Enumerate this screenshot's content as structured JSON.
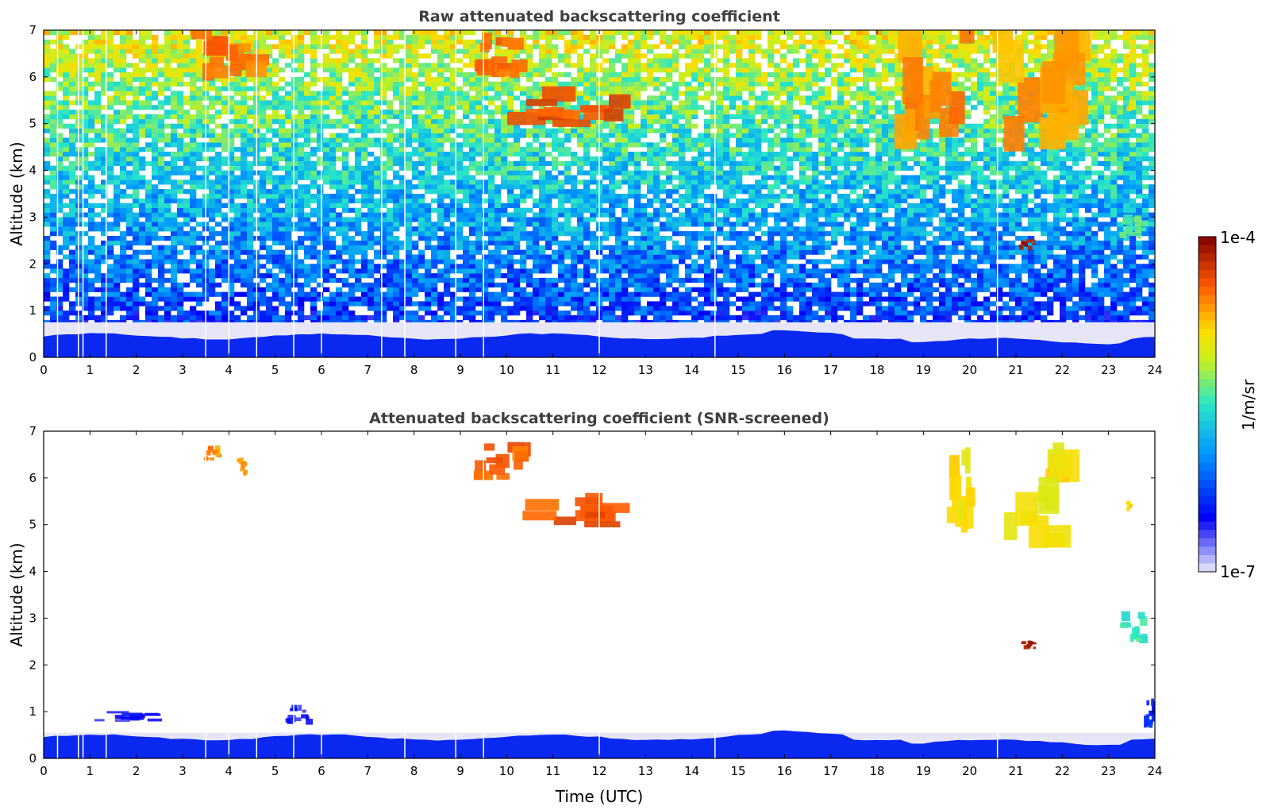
{
  "chart_data": [
    {
      "type": "heatmap",
      "title": "Raw attenuated backscattering coefficient",
      "xlabel": "",
      "ylabel": "Altitude (km)",
      "xlim": [
        0,
        24
      ],
      "ylim": [
        0,
        7
      ],
      "xticks": [
        0,
        1,
        2,
        3,
        4,
        5,
        6,
        7,
        8,
        9,
        10,
        11,
        12,
        13,
        14,
        15,
        16,
        17,
        18,
        19,
        20,
        21,
        22,
        23,
        24
      ],
      "yticks": [
        0,
        1,
        2,
        3,
        4,
        5,
        6,
        7
      ],
      "noise_background": true,
      "boundary_layer": {
        "top_km": 0.45,
        "shade_top_km": 0.75
      },
      "data_gaps_utc": [
        0.3,
        0.75,
        0.85,
        1.35,
        3.5,
        4.0,
        4.6,
        5.4,
        6.0,
        7.3,
        7.8,
        8.9,
        9.5,
        12.0,
        14.5,
        20.6
      ],
      "cloud_features": [
        {
          "t_start": 3.4,
          "t_end": 4.7,
          "alt_bottom_km": 6.0,
          "alt_top_km": 7.0,
          "level": 0.82
        },
        {
          "t_start": 9.4,
          "t_end": 10.4,
          "alt_bottom_km": 6.0,
          "alt_top_km": 6.8,
          "level": 0.84
        },
        {
          "t_start": 10.4,
          "t_end": 12.5,
          "alt_bottom_km": 4.95,
          "alt_top_km": 5.7,
          "level": 0.87
        },
        {
          "t_start": 18.6,
          "t_end": 20.0,
          "alt_bottom_km": 4.7,
          "alt_top_km": 7.0,
          "level": 0.8
        },
        {
          "t_start": 20.5,
          "t_end": 22.3,
          "alt_bottom_km": 4.6,
          "alt_top_km": 7.0,
          "level": 0.78
        },
        {
          "t_start": 21.1,
          "t_end": 21.4,
          "alt_bottom_km": 2.3,
          "alt_top_km": 2.5,
          "level": 0.96
        },
        {
          "t_start": 23.3,
          "t_end": 23.8,
          "alt_bottom_km": 2.5,
          "alt_top_km": 3.0,
          "level": 0.55
        },
        {
          "t_start": 23.4,
          "t_end": 23.5,
          "alt_bottom_km": 5.3,
          "alt_top_km": 5.5,
          "level": 0.72
        }
      ]
    },
    {
      "type": "heatmap",
      "title": "Attenuated backscattering coefficient (SNR-screened)",
      "xlabel": "Time (UTC)",
      "ylabel": "Altitude (km)",
      "xlim": [
        0,
        24
      ],
      "ylim": [
        0,
        7
      ],
      "xticks": [
        0,
        1,
        2,
        3,
        4,
        5,
        6,
        7,
        8,
        9,
        10,
        11,
        12,
        13,
        14,
        15,
        16,
        17,
        18,
        19,
        20,
        21,
        22,
        23,
        24
      ],
      "yticks": [
        0,
        1,
        2,
        3,
        4,
        5,
        6,
        7
      ],
      "noise_background": false,
      "boundary_layer": {
        "top_km": 0.45,
        "shade_top_km": 0.55
      },
      "data_gaps_utc": [
        0.3,
        0.75,
        0.85,
        1.35,
        3.5,
        4.0,
        4.6,
        5.4,
        6.0,
        7.8,
        8.9,
        9.5,
        12.0,
        14.5,
        20.6
      ],
      "cloud_features": [
        {
          "t_start": 3.5,
          "t_end": 3.8,
          "alt_bottom_km": 6.4,
          "alt_top_km": 6.7,
          "level": 0.8
        },
        {
          "t_start": 4.2,
          "t_end": 4.4,
          "alt_bottom_km": 6.1,
          "alt_top_km": 6.4,
          "level": 0.8
        },
        {
          "t_start": 9.4,
          "t_end": 10.5,
          "alt_bottom_km": 6.0,
          "alt_top_km": 6.7,
          "level": 0.84
        },
        {
          "t_start": 10.5,
          "t_end": 12.5,
          "alt_bottom_km": 5.0,
          "alt_top_km": 5.6,
          "level": 0.86
        },
        {
          "t_start": 19.5,
          "t_end": 20.1,
          "alt_bottom_km": 4.8,
          "alt_top_km": 6.6,
          "level": 0.7
        },
        {
          "t_start": 20.7,
          "t_end": 22.3,
          "alt_bottom_km": 4.6,
          "alt_top_km": 6.5,
          "level": 0.7
        },
        {
          "t_start": 21.1,
          "t_end": 21.4,
          "alt_bottom_km": 2.3,
          "alt_top_km": 2.5,
          "level": 0.96
        },
        {
          "t_start": 23.3,
          "t_end": 23.8,
          "alt_bottom_km": 2.5,
          "alt_top_km": 3.1,
          "level": 0.5
        },
        {
          "t_start": 23.4,
          "t_end": 23.5,
          "alt_bottom_km": 5.3,
          "alt_top_km": 5.5,
          "level": 0.72
        },
        {
          "t_start": 1.1,
          "t_end": 2.4,
          "alt_bottom_km": 0.8,
          "alt_top_km": 1.0,
          "level": 0.15
        },
        {
          "t_start": 5.3,
          "t_end": 5.8,
          "alt_bottom_km": 0.75,
          "alt_top_km": 1.1,
          "level": 0.15
        },
        {
          "t_start": 23.8,
          "t_end": 24.0,
          "alt_bottom_km": 0.6,
          "alt_top_km": 1.2,
          "level": 0.2
        }
      ]
    }
  ],
  "colorbar": {
    "label": "1/m/sr",
    "top_label": "1e-4",
    "bottom_label": "1e-7",
    "colormap": "jet with white-to-blue lower segment"
  }
}
